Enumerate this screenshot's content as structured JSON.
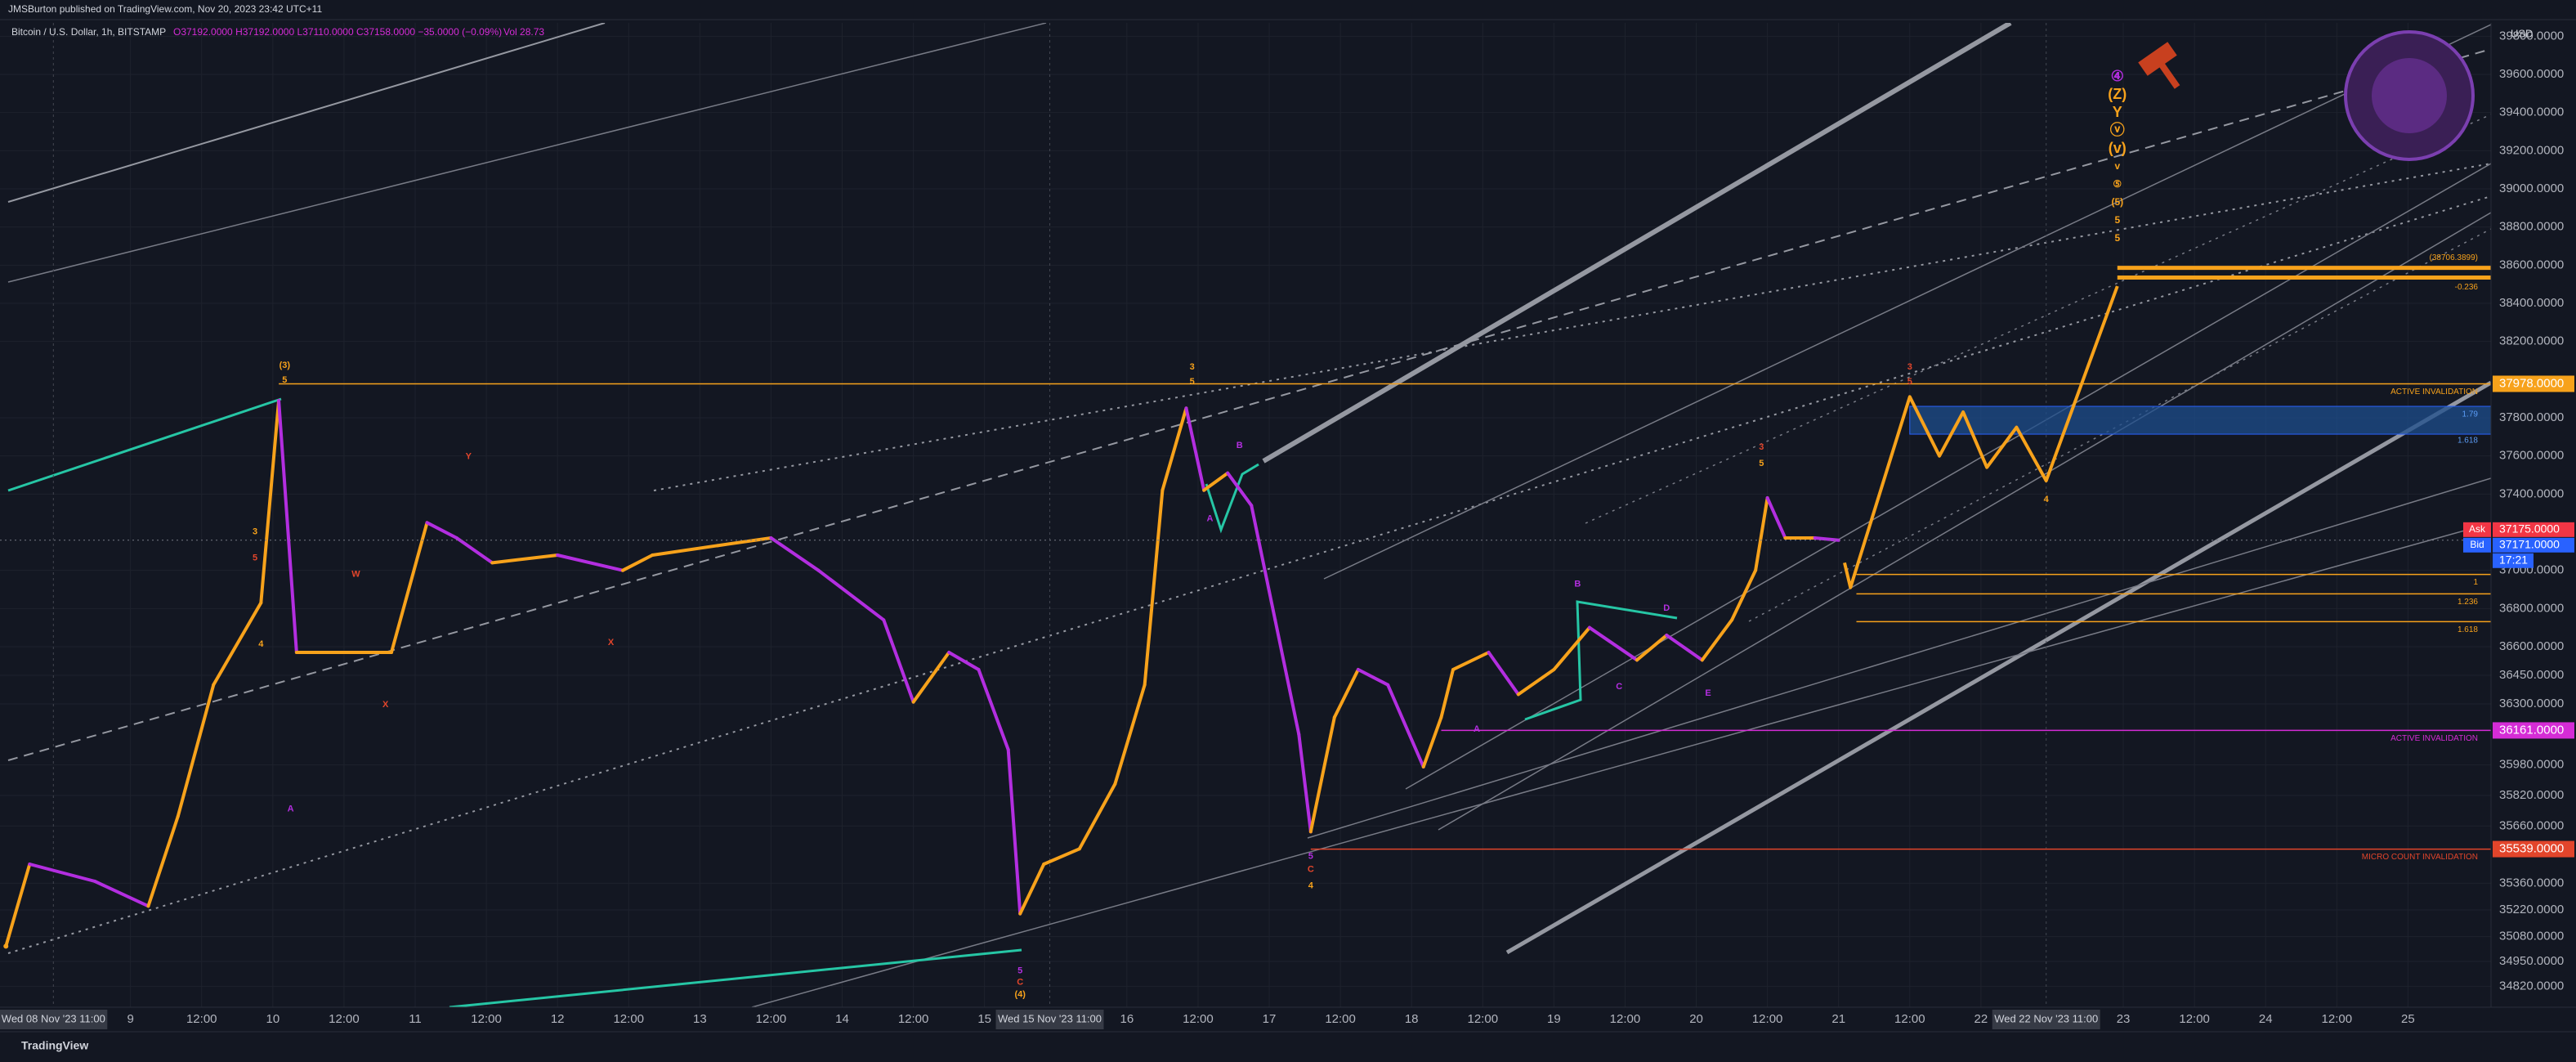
{
  "header": {
    "published": "JMSBurton published on TradingView.com, Nov 20, 2023 23:42 UTC+11",
    "symbol": "Bitcoin / U.S. Dollar, 1h, BITSTAMP",
    "ohlc": "O37192.0000 H37192.0000 L37110.0000 C37158.0000 −35.0000 (−0.09%)",
    "volume": "Vol 28.73",
    "currency": "USD",
    "footer": "TradingView"
  },
  "chart_data": {
    "type": "line",
    "xlim": [
      2,
      422
    ],
    "ylim": [
      34710,
      39870
    ],
    "grid": true,
    "color": "#f7a21b",
    "down_color": "#b32ee0",
    "x": [
      3,
      7,
      18,
      27,
      32,
      38,
      46,
      49,
      52,
      57,
      68,
      74,
      79,
      85,
      96,
      107,
      112,
      123,
      132,
      140,
      151,
      156,
      162,
      167,
      172,
      174,
      178,
      184,
      190,
      195,
      198,
      202,
      205,
      209,
      213,
      217,
      221,
      223,
      227,
      231,
      236,
      242,
      245,
      247,
      253,
      258,
      264,
      270,
      278,
      283,
      289,
      294,
      298,
      300,
      303,
      308,
      312
    ],
    "values": [
      35030,
      35460,
      35370,
      35240,
      35710,
      36400,
      36830,
      37890,
      36570,
      36570,
      36570,
      37250,
      37170,
      37040,
      37080,
      37000,
      37080,
      37130,
      37170,
      37000,
      36740,
      36310,
      36570,
      36480,
      36060,
      35200,
      35460,
      35540,
      35880,
      36400,
      37420,
      37850,
      37420,
      37510,
      37340,
      36740,
      36140,
      35630,
      36230,
      36480,
      36400,
      35970,
      36230,
      36480,
      36570,
      36350,
      36480,
      36700,
      36530,
      36660,
      36530,
      36740,
      37000,
      37380,
      37170,
      37170,
      37158
    ],
    "projection": {
      "color": "#f7a21b",
      "x": [
        313,
        314,
        324,
        329,
        333,
        337,
        342,
        347,
        359
      ],
      "values": [
        37040,
        36910,
        37910,
        37600,
        37830,
        37540,
        37750,
        37470,
        38490
      ]
    },
    "yticks": [
      {
        "value": 39800,
        "label": "39800.0000"
      },
      {
        "value": 39600,
        "label": "39600.0000"
      },
      {
        "value": 39400,
        "label": "39400.0000"
      },
      {
        "value": 39200,
        "label": "39200.0000"
      },
      {
        "value": 39000,
        "label": "39000.0000"
      },
      {
        "value": 38800,
        "label": "38800.0000"
      },
      {
        "value": 38600,
        "label": "38600.0000"
      },
      {
        "value": 38400,
        "label": "38400.0000"
      },
      {
        "value": 38200,
        "label": "38200.0000"
      },
      {
        "value": 37800,
        "label": "37800.0000"
      },
      {
        "value": 37600,
        "label": "37600.0000"
      },
      {
        "value": 37400,
        "label": "37400.0000"
      },
      {
        "value": 37000,
        "label": "37000.0000"
      },
      {
        "value": 36800,
        "label": "36800.0000"
      },
      {
        "value": 36600,
        "label": "36600.0000"
      },
      {
        "value": 36450,
        "label": "36450.0000"
      },
      {
        "value": 36300,
        "label": "36300.0000"
      },
      {
        "value": 35980,
        "label": "35980.0000"
      },
      {
        "value": 35820,
        "label": "35820.0000"
      },
      {
        "value": 35660,
        "label": "35660.0000"
      },
      {
        "value": 35360,
        "label": "35360.0000"
      },
      {
        "value": 35220,
        "label": "35220.0000"
      },
      {
        "value": 35080,
        "label": "35080.0000"
      },
      {
        "value": 34950,
        "label": "34950.0000"
      },
      {
        "value": 34820,
        "label": "34820.0000"
      }
    ],
    "xticks": [
      {
        "value": 24,
        "label": "9"
      },
      {
        "value": 36,
        "label": "12:00"
      },
      {
        "value": 48,
        "label": "10"
      },
      {
        "value": 60,
        "label": "12:00"
      },
      {
        "value": 72,
        "label": "11"
      },
      {
        "value": 84,
        "label": "12:00"
      },
      {
        "value": 96,
        "label": "12"
      },
      {
        "value": 108,
        "label": "12:00"
      },
      {
        "value": 120,
        "label": "13"
      },
      {
        "value": 132,
        "label": "12:00"
      },
      {
        "value": 144,
        "label": "14"
      },
      {
        "value": 156,
        "label": "12:00"
      },
      {
        "value": 168,
        "label": "15"
      },
      {
        "value": 192,
        "label": "16"
      },
      {
        "value": 204,
        "label": "12:00"
      },
      {
        "value": 216,
        "label": "17"
      },
      {
        "value": 228,
        "label": "12:00"
      },
      {
        "value": 240,
        "label": "18"
      },
      {
        "value": 252,
        "label": "12:00"
      },
      {
        "value": 264,
        "label": "19"
      },
      {
        "value": 276,
        "label": "12:00"
      },
      {
        "value": 288,
        "label": "20"
      },
      {
        "value": 300,
        "label": "12:00"
      },
      {
        "value": 312,
        "label": "21"
      },
      {
        "value": 324,
        "label": "12:00"
      },
      {
        "value": 336,
        "label": "22"
      },
      {
        "value": 360,
        "label": "23"
      },
      {
        "value": 372,
        "label": "12:00"
      },
      {
        "value": 384,
        "label": "24"
      },
      {
        "value": 396,
        "label": "12:00"
      },
      {
        "value": 408,
        "label": "25"
      }
    ],
    "markers": [
      {
        "value": 11,
        "label": "Wed 08 Nov '23  11:00"
      },
      {
        "value": 179,
        "label": "Wed 15 Nov '23  11:00"
      },
      {
        "value": 347,
        "label": "Wed 22 Nov '23  11:00"
      }
    ],
    "levels": [
      {
        "value": 37978,
        "from": 49,
        "color": "#f7a21b",
        "label": "ACTIVE INVALIDATION",
        "axis_label": "37978.0000"
      },
      {
        "value": 36161,
        "from": 245,
        "color": "#d52cd6",
        "label": "ACTIVE INVALIDATION",
        "axis_label": "36161.0000"
      },
      {
        "value": 35539,
        "from": 223,
        "color": "#e2452b",
        "label": "MICRO COUNT INVALIDATION",
        "axis_label": "35539.0000"
      }
    ],
    "fib": {
      "from": 315,
      "color": "#f7a21b",
      "levels": [
        {
          "value": 36979,
          "label": "1"
        },
        {
          "value": 36877,
          "label": "1.236"
        },
        {
          "value": 36731,
          "label": "1.618"
        }
      ]
    },
    "zone": {
      "from": 324,
      "top": 37860,
      "bottom": 37714,
      "color": "#1e4d8c",
      "top_label": "1.79",
      "bottom_label": "1.618"
    },
    "targets": {
      "from": 359,
      "color": "#f7a21b",
      "levels": [
        {
          "value": 38586,
          "label": "(38706.3899)"
        },
        {
          "value": 38535,
          "label": "-0.236"
        }
      ]
    },
    "price_labels": [
      {
        "tag": "Ask",
        "value": 37175,
        "label": "37175.0000",
        "color": "#f23645"
      },
      {
        "tag": "Bid",
        "value": 37171,
        "label": "37171.0000",
        "color": "#2962ff"
      }
    ],
    "countdown": "17:21",
    "annotations": [
      {
        "x": 50,
        "y": 38073,
        "text": "(3)",
        "color": "#f7a21b"
      },
      {
        "x": 50,
        "y": 37996,
        "text": "5",
        "color": "#f7a21b"
      },
      {
        "x": 45,
        "y": 37201,
        "text": "3",
        "color": "#f7a21b"
      },
      {
        "x": 45,
        "y": 37065,
        "text": "5",
        "color": "#e2452b"
      },
      {
        "x": 46,
        "y": 36612,
        "text": "4",
        "color": "#f7a21b"
      },
      {
        "x": 51,
        "y": 35748,
        "text": "A",
        "color": "#b32ee0"
      },
      {
        "x": 62,
        "y": 36979,
        "text": "W",
        "color": "#e2452b"
      },
      {
        "x": 67,
        "y": 36295,
        "text": "X",
        "color": "#e2452b"
      },
      {
        "x": 81,
        "y": 37595,
        "text": "Y",
        "color": "#e2452b"
      },
      {
        "x": 105,
        "y": 36620,
        "text": "X",
        "color": "#e2452b"
      },
      {
        "x": 174,
        "y": 34900,
        "text": "5",
        "color": "#b32ee0"
      },
      {
        "x": 174,
        "y": 34840,
        "text": "C",
        "color": "#e2452b"
      },
      {
        "x": 174,
        "y": 34775,
        "text": "(4)",
        "color": "#f7a21b"
      },
      {
        "x": 203,
        "y": 38065,
        "text": "3",
        "color": "#f7a21b"
      },
      {
        "x": 203,
        "y": 37988,
        "text": "5",
        "color": "#f7a21b"
      },
      {
        "x": 206,
        "y": 37270,
        "text": "A",
        "color": "#b32ee0"
      },
      {
        "x": 211,
        "y": 37654,
        "text": "B",
        "color": "#b32ee0"
      },
      {
        "x": 223,
        "y": 35500,
        "text": "5",
        "color": "#b32ee0"
      },
      {
        "x": 223,
        "y": 35432,
        "text": "C",
        "color": "#e2452b"
      },
      {
        "x": 223,
        "y": 35347,
        "text": "4",
        "color": "#f7a21b"
      },
      {
        "x": 251,
        "y": 36167,
        "text": "A",
        "color": "#b32ee0"
      },
      {
        "x": 268,
        "y": 36928,
        "text": "B",
        "color": "#b32ee0"
      },
      {
        "x": 275,
        "y": 36390,
        "text": "C",
        "color": "#b32ee0"
      },
      {
        "x": 283,
        "y": 36800,
        "text": "D",
        "color": "#b32ee0"
      },
      {
        "x": 290,
        "y": 36355,
        "text": "E",
        "color": "#b32ee0"
      },
      {
        "x": 299,
        "y": 37646,
        "text": "3",
        "color": "#e2452b"
      },
      {
        "x": 299,
        "y": 37560,
        "text": "5",
        "color": "#f7a21b"
      },
      {
        "x": 324,
        "y": 38065,
        "text": "3",
        "color": "#e2452b"
      },
      {
        "x": 324,
        "y": 37988,
        "text": "5",
        "color": "#e2452b"
      },
      {
        "x": 347,
        "y": 37372,
        "text": "4",
        "color": "#f7a21b"
      }
    ],
    "wave_stack": {
      "x": 359,
      "color": "#f7a21b",
      "first_color": "#b32ee0",
      "labels": [
        "④",
        "(Z)",
        "Y",
        "ⓥ",
        "(v)",
        "v",
        "⑤",
        "(5)",
        "5",
        "5"
      ]
    }
  }
}
